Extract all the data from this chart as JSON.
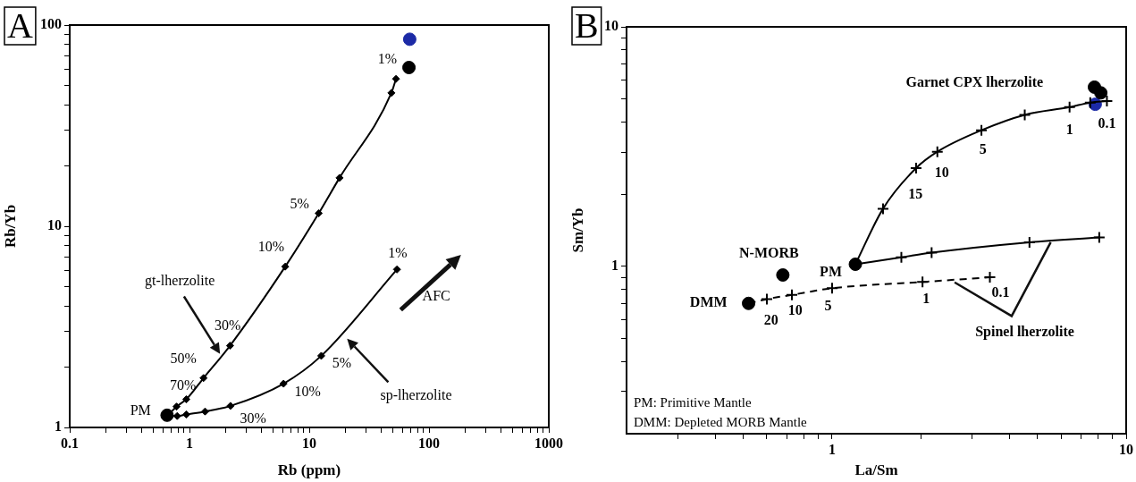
{
  "chart_data": [
    {
      "type": "line",
      "title": "A",
      "xlabel": "Rb (ppm)",
      "ylabel": "Rb/Yb",
      "log": "xy",
      "xlim": [
        0.1,
        1000
      ],
      "ylim": [
        1,
        100
      ],
      "xticks": [
        0.1,
        {
          "value": 0.2,
          "label": null
        },
        {
          "value": 0.3,
          "label": null
        },
        {
          "value": 0.4,
          "label": null
        },
        {
          "value": 0.5,
          "label": null
        },
        {
          "value": 0.6,
          "label": null
        },
        {
          "value": 0.7,
          "label": null
        },
        {
          "value": 0.8,
          "label": null
        },
        {
          "value": 0.9,
          "label": null
        },
        1,
        {
          "value": 2,
          "label": null
        },
        {
          "value": 3,
          "label": null
        },
        {
          "value": 4,
          "label": null
        },
        {
          "value": 5,
          "label": null
        },
        {
          "value": 6,
          "label": null
        },
        {
          "value": 7,
          "label": null
        },
        {
          "value": 8,
          "label": null
        },
        {
          "value": 9,
          "label": null
        },
        10,
        {
          "value": 20,
          "label": null
        },
        {
          "value": 30,
          "label": null
        },
        {
          "value": 40,
          "label": null
        },
        {
          "value": 50,
          "label": null
        },
        {
          "value": 60,
          "label": null
        },
        {
          "value": 70,
          "label": null
        },
        {
          "value": 80,
          "label": null
        },
        {
          "value": 90,
          "label": null
        },
        100,
        {
          "value": 200,
          "label": null
        },
        {
          "value": 300,
          "label": null
        },
        {
          "value": 400,
          "label": null
        },
        {
          "value": 500,
          "label": null
        },
        {
          "value": 600,
          "label": null
        },
        {
          "value": 700,
          "label": null
        },
        {
          "value": 800,
          "label": null
        },
        {
          "value": 900,
          "label": null
        },
        1000
      ],
      "yticks": [
        1,
        {
          "value": 2,
          "label": null
        },
        {
          "value": 3,
          "label": null
        },
        {
          "value": 4,
          "label": null
        },
        {
          "value": 5,
          "label": null
        },
        {
          "value": 6,
          "label": null
        },
        {
          "value": 7,
          "label": null
        },
        {
          "value": 8,
          "label": null
        },
        {
          "value": 9,
          "label": null
        },
        10,
        {
          "value": 20,
          "label": null
        },
        {
          "value": 30,
          "label": null
        },
        {
          "value": 40,
          "label": null
        },
        {
          "value": 50,
          "label": null
        },
        {
          "value": 60,
          "label": null
        },
        {
          "value": 70,
          "label": null
        },
        {
          "value": 80,
          "label": null
        },
        {
          "value": 90,
          "label": null
        },
        100
      ],
      "series": [
        {
          "type": "line",
          "color": "#000000",
          "marker": "diamond",
          "x": [
            0.65,
            0.78,
            0.94,
            1.31,
            2.18,
            6.3,
            12,
            17.9,
            48.5,
            53
          ],
          "values": [
            1.14,
            1.27,
            1.38,
            1.76,
            2.55,
            6.3,
            11.6,
            17.4,
            46,
            54
          ]
        },
        {
          "type": "line",
          "color": "#000000",
          "marker": "diamond",
          "x": [
            0.65,
            0.79,
            0.94,
            1.35,
            2.2,
            6.1,
            12.6,
            54
          ],
          "values": [
            1.14,
            1.14,
            1.16,
            1.2,
            1.28,
            1.65,
            2.27,
            6.1
          ]
        },
        {
          "type": "scatter",
          "color": "#000000",
          "marker": "circle",
          "x": [
            0.65,
            68
          ],
          "values": [
            1.15,
            61.5
          ]
        },
        {
          "type": "scatter",
          "color": "#1c2aa6",
          "marker": "circle",
          "x": [
            69
          ],
          "values": [
            85
          ]
        }
      ],
      "annotations": [
        "1%",
        "5%",
        "10%",
        "30%",
        "50%",
        "70%",
        "PM",
        "30%",
        "10%",
        "5%",
        "1%",
        "gt-lherzolite",
        "sp-lherzolite",
        "AFC"
      ]
    },
    {
      "type": "line",
      "title": "B",
      "xlabel": "La/Sm",
      "ylabel": "Sm/Yb",
      "log": "xy",
      "xlim": [
        0.2,
        10
      ],
      "ylim": [
        0.2,
        10
      ],
      "xticks": [
        {
          "value": 0.3,
          "label": null
        },
        {
          "value": 0.4,
          "label": null
        },
        {
          "value": 0.5,
          "label": null
        },
        {
          "value": 0.6,
          "label": null
        },
        {
          "value": 0.7,
          "label": null
        },
        {
          "value": 0.8,
          "label": null
        },
        {
          "value": 0.9,
          "label": null
        },
        1,
        {
          "value": 2,
          "label": null
        },
        {
          "value": 3,
          "label": null
        },
        {
          "value": 4,
          "label": null
        },
        {
          "value": 5,
          "label": null
        },
        {
          "value": 6,
          "label": null
        },
        {
          "value": 7,
          "label": null
        },
        {
          "value": 8,
          "label": null
        },
        {
          "value": 9,
          "label": null
        },
        10
      ],
      "yticks": [
        {
          "value": 0.3,
          "label": null
        },
        {
          "value": 0.4,
          "label": null
        },
        {
          "value": 0.5,
          "label": null
        },
        {
          "value": 0.6,
          "label": null
        },
        {
          "value": 0.7,
          "label": null
        },
        {
          "value": 0.8,
          "label": null
        },
        {
          "value": 0.9,
          "label": null
        },
        1,
        {
          "value": 2,
          "label": null
        },
        {
          "value": 3,
          "label": null
        },
        {
          "value": 4,
          "label": null
        },
        {
          "value": 5,
          "label": null
        },
        {
          "value": 6,
          "label": null
        },
        {
          "value": 7,
          "label": null
        },
        {
          "value": 8,
          "label": null
        },
        {
          "value": 9,
          "label": null
        },
        10
      ],
      "series": [
        {
          "type": "line",
          "color": "#000000",
          "marker": "cross",
          "x": [
            1.2,
            1.49,
            1.93,
            2.28,
            3.22,
            4.52,
            6.42,
            7.55,
            8.6
          ],
          "values": [
            1.02,
            1.74,
            2.57,
            3.01,
            3.7,
            4.29,
            4.62,
            4.83,
            4.9
          ]
        },
        {
          "type": "line",
          "color": "#000000",
          "marker": "cross",
          "x": [
            1.2,
            1.72,
            2.18,
            4.69,
            8.1
          ],
          "values": [
            1.02,
            1.09,
            1.14,
            1.26,
            1.32
          ]
        },
        {
          "type": "line",
          "color": "#000000",
          "marker": "cross",
          "line_style": "dashed",
          "x": [
            0.52,
            0.6,
            0.73,
            1.0,
            2.03,
            3.44
          ],
          "values": [
            0.7,
            0.73,
            0.76,
            0.81,
            0.86,
            0.9
          ]
        },
        {
          "type": "scatter",
          "color": "#000000",
          "marker": "circle",
          "x": [
            0.52,
            0.68,
            1.2,
            7.8,
            8.2
          ],
          "values": [
            0.7,
            0.92,
            1.02,
            5.6,
            5.3
          ]
        },
        {
          "type": "scatter",
          "color": "#1c2aa6",
          "marker": "circle",
          "x": [
            7.85
          ],
          "values": [
            4.75
          ]
        }
      ],
      "annotations": [
        "Garnet CPX lherzolite",
        "N-MORB",
        "PM",
        "DMM",
        "20",
        "10",
        "5",
        "1",
        "0.1",
        "Spinel lherzolite",
        "15",
        "10",
        "5",
        "1",
        "0.1",
        "PM: Primitive Mantle",
        "DMM: Depleted MORB Mantle"
      ]
    }
  ]
}
